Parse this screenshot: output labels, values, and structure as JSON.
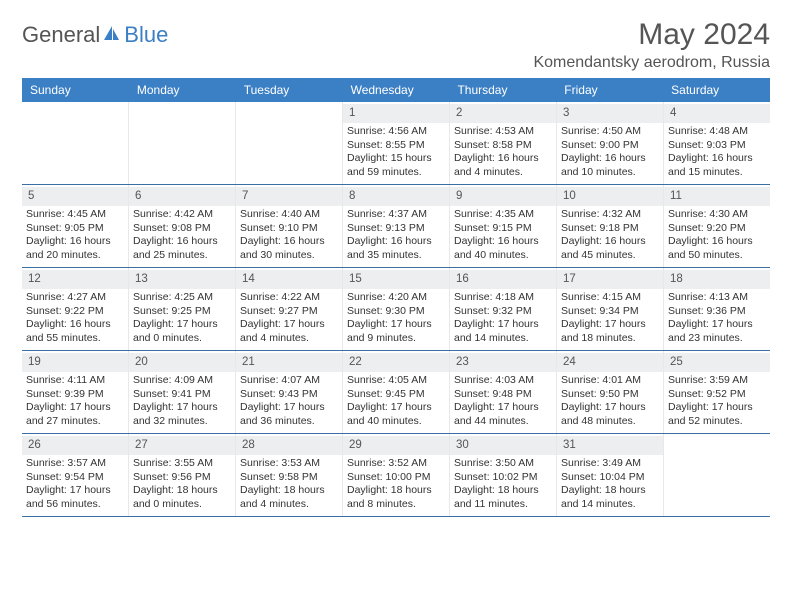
{
  "brand": {
    "text1": "General",
    "text2": "Blue",
    "icon_color": "#3b7fc4"
  },
  "title": "May 2024",
  "location": "Komendantsky aerodrom, Russia",
  "colors": {
    "header_bg": "#3b7fc4",
    "header_fg": "#ffffff",
    "daynum_bg": "#eceef0",
    "border": "#3b6fa4",
    "text": "#333333"
  },
  "weekdays": [
    "Sunday",
    "Monday",
    "Tuesday",
    "Wednesday",
    "Thursday",
    "Friday",
    "Saturday"
  ],
  "weeks": [
    [
      null,
      null,
      null,
      {
        "n": "1",
        "sr": "Sunrise: 4:56 AM",
        "ss": "Sunset: 8:55 PM",
        "dl": "Daylight: 15 hours and 59 minutes."
      },
      {
        "n": "2",
        "sr": "Sunrise: 4:53 AM",
        "ss": "Sunset: 8:58 PM",
        "dl": "Daylight: 16 hours and 4 minutes."
      },
      {
        "n": "3",
        "sr": "Sunrise: 4:50 AM",
        "ss": "Sunset: 9:00 PM",
        "dl": "Daylight: 16 hours and 10 minutes."
      },
      {
        "n": "4",
        "sr": "Sunrise: 4:48 AM",
        "ss": "Sunset: 9:03 PM",
        "dl": "Daylight: 16 hours and 15 minutes."
      }
    ],
    [
      {
        "n": "5",
        "sr": "Sunrise: 4:45 AM",
        "ss": "Sunset: 9:05 PM",
        "dl": "Daylight: 16 hours and 20 minutes."
      },
      {
        "n": "6",
        "sr": "Sunrise: 4:42 AM",
        "ss": "Sunset: 9:08 PM",
        "dl": "Daylight: 16 hours and 25 minutes."
      },
      {
        "n": "7",
        "sr": "Sunrise: 4:40 AM",
        "ss": "Sunset: 9:10 PM",
        "dl": "Daylight: 16 hours and 30 minutes."
      },
      {
        "n": "8",
        "sr": "Sunrise: 4:37 AM",
        "ss": "Sunset: 9:13 PM",
        "dl": "Daylight: 16 hours and 35 minutes."
      },
      {
        "n": "9",
        "sr": "Sunrise: 4:35 AM",
        "ss": "Sunset: 9:15 PM",
        "dl": "Daylight: 16 hours and 40 minutes."
      },
      {
        "n": "10",
        "sr": "Sunrise: 4:32 AM",
        "ss": "Sunset: 9:18 PM",
        "dl": "Daylight: 16 hours and 45 minutes."
      },
      {
        "n": "11",
        "sr": "Sunrise: 4:30 AM",
        "ss": "Sunset: 9:20 PM",
        "dl": "Daylight: 16 hours and 50 minutes."
      }
    ],
    [
      {
        "n": "12",
        "sr": "Sunrise: 4:27 AM",
        "ss": "Sunset: 9:22 PM",
        "dl": "Daylight: 16 hours and 55 minutes."
      },
      {
        "n": "13",
        "sr": "Sunrise: 4:25 AM",
        "ss": "Sunset: 9:25 PM",
        "dl": "Daylight: 17 hours and 0 minutes."
      },
      {
        "n": "14",
        "sr": "Sunrise: 4:22 AM",
        "ss": "Sunset: 9:27 PM",
        "dl": "Daylight: 17 hours and 4 minutes."
      },
      {
        "n": "15",
        "sr": "Sunrise: 4:20 AM",
        "ss": "Sunset: 9:30 PM",
        "dl": "Daylight: 17 hours and 9 minutes."
      },
      {
        "n": "16",
        "sr": "Sunrise: 4:18 AM",
        "ss": "Sunset: 9:32 PM",
        "dl": "Daylight: 17 hours and 14 minutes."
      },
      {
        "n": "17",
        "sr": "Sunrise: 4:15 AM",
        "ss": "Sunset: 9:34 PM",
        "dl": "Daylight: 17 hours and 18 minutes."
      },
      {
        "n": "18",
        "sr": "Sunrise: 4:13 AM",
        "ss": "Sunset: 9:36 PM",
        "dl": "Daylight: 17 hours and 23 minutes."
      }
    ],
    [
      {
        "n": "19",
        "sr": "Sunrise: 4:11 AM",
        "ss": "Sunset: 9:39 PM",
        "dl": "Daylight: 17 hours and 27 minutes."
      },
      {
        "n": "20",
        "sr": "Sunrise: 4:09 AM",
        "ss": "Sunset: 9:41 PM",
        "dl": "Daylight: 17 hours and 32 minutes."
      },
      {
        "n": "21",
        "sr": "Sunrise: 4:07 AM",
        "ss": "Sunset: 9:43 PM",
        "dl": "Daylight: 17 hours and 36 minutes."
      },
      {
        "n": "22",
        "sr": "Sunrise: 4:05 AM",
        "ss": "Sunset: 9:45 PM",
        "dl": "Daylight: 17 hours and 40 minutes."
      },
      {
        "n": "23",
        "sr": "Sunrise: 4:03 AM",
        "ss": "Sunset: 9:48 PM",
        "dl": "Daylight: 17 hours and 44 minutes."
      },
      {
        "n": "24",
        "sr": "Sunrise: 4:01 AM",
        "ss": "Sunset: 9:50 PM",
        "dl": "Daylight: 17 hours and 48 minutes."
      },
      {
        "n": "25",
        "sr": "Sunrise: 3:59 AM",
        "ss": "Sunset: 9:52 PM",
        "dl": "Daylight: 17 hours and 52 minutes."
      }
    ],
    [
      {
        "n": "26",
        "sr": "Sunrise: 3:57 AM",
        "ss": "Sunset: 9:54 PM",
        "dl": "Daylight: 17 hours and 56 minutes."
      },
      {
        "n": "27",
        "sr": "Sunrise: 3:55 AM",
        "ss": "Sunset: 9:56 PM",
        "dl": "Daylight: 18 hours and 0 minutes."
      },
      {
        "n": "28",
        "sr": "Sunrise: 3:53 AM",
        "ss": "Sunset: 9:58 PM",
        "dl": "Daylight: 18 hours and 4 minutes."
      },
      {
        "n": "29",
        "sr": "Sunrise: 3:52 AM",
        "ss": "Sunset: 10:00 PM",
        "dl": "Daylight: 18 hours and 8 minutes."
      },
      {
        "n": "30",
        "sr": "Sunrise: 3:50 AM",
        "ss": "Sunset: 10:02 PM",
        "dl": "Daylight: 18 hours and 11 minutes."
      },
      {
        "n": "31",
        "sr": "Sunrise: 3:49 AM",
        "ss": "Sunset: 10:04 PM",
        "dl": "Daylight: 18 hours and 14 minutes."
      },
      null
    ]
  ]
}
